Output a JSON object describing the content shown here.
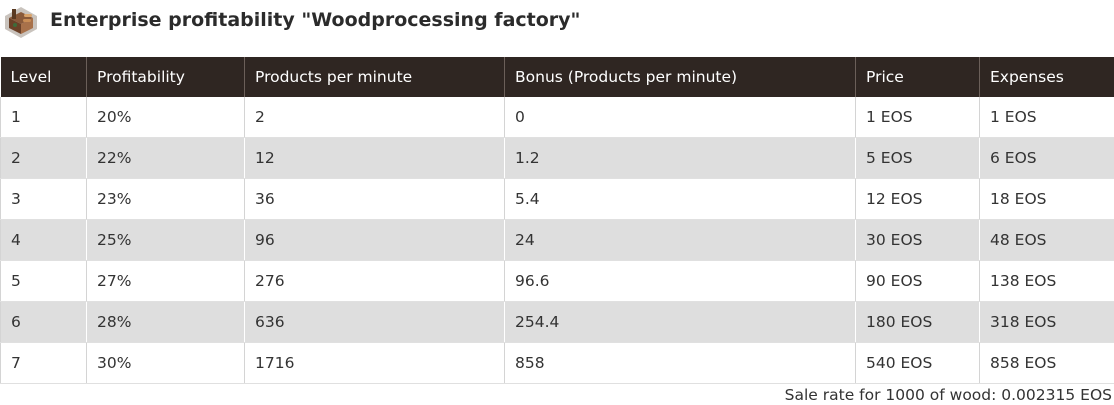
{
  "header": {
    "title": "Enterprise profitability \"Woodprocessing factory\"",
    "icon": "woodprocessing-factory-icon"
  },
  "table": {
    "columns": [
      "Level",
      "Profitability",
      "Products per minute",
      "Bonus (Products per minute)",
      "Price",
      "Expenses"
    ],
    "rows": [
      [
        "1",
        "20%",
        "2",
        "0",
        "1 EOS",
        "1 EOS"
      ],
      [
        "2",
        "22%",
        "12",
        "1.2",
        "5 EOS",
        "6 EOS"
      ],
      [
        "3",
        "23%",
        "36",
        "5.4",
        "12 EOS",
        "18 EOS"
      ],
      [
        "4",
        "25%",
        "96",
        "24",
        "30 EOS",
        "48 EOS"
      ],
      [
        "5",
        "27%",
        "276",
        "96.6",
        "90 EOS",
        "138 EOS"
      ],
      [
        "6",
        "28%",
        "636",
        "254.4",
        "180 EOS",
        "318 EOS"
      ],
      [
        "7",
        "30%",
        "1716",
        "858",
        "540 EOS",
        "858 EOS"
      ]
    ]
  },
  "footer": {
    "sale_rate": "Sale rate for 1000 of wood: 0.002315 EOS"
  },
  "colors": {
    "header_bg": "#2f2622",
    "stripe": "#dedede"
  }
}
